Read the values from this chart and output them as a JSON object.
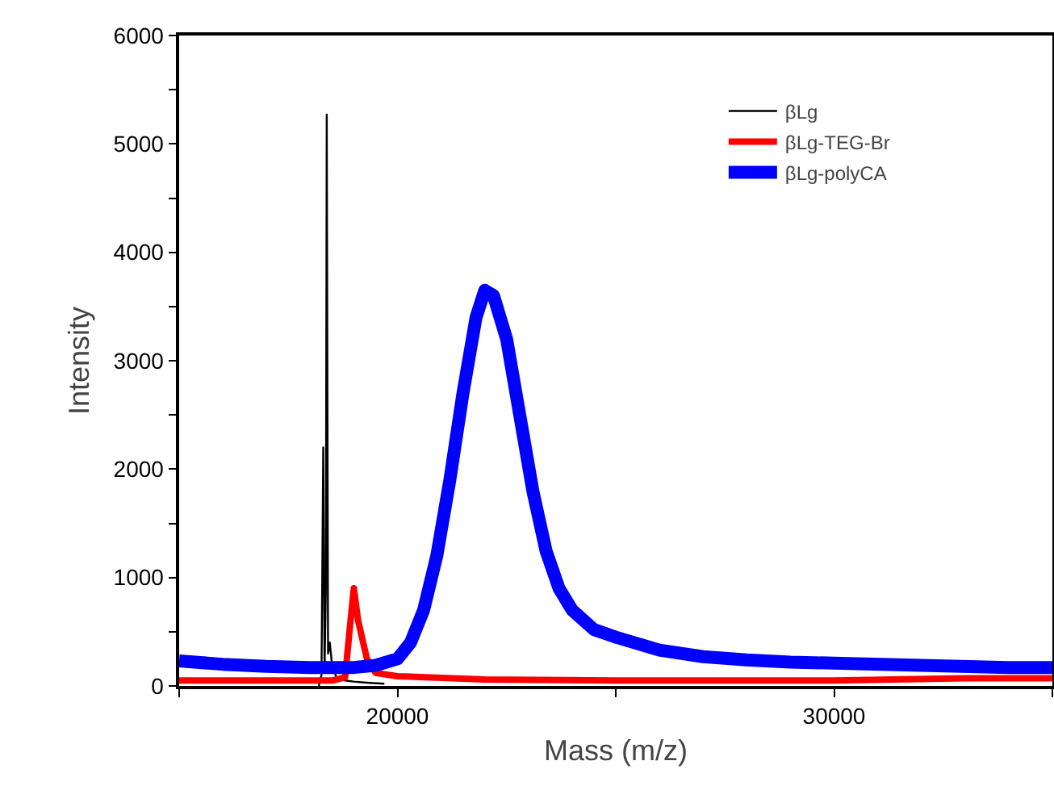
{
  "chart_data": {
    "type": "line",
    "xlabel": "Mass (m/z)",
    "ylabel": "Intensity",
    "xlim": [
      15000,
      35000
    ],
    "xticks": [
      {
        "value": 15000,
        "label": null
      },
      20000,
      {
        "value": 25000,
        "label": null
      },
      30000,
      {
        "value": 35000,
        "label": null
      }
    ],
    "ylim": [
      0,
      6000
    ],
    "yticks": [
      0,
      {
        "value": 500,
        "label": null
      },
      1000,
      {
        "value": 1500,
        "label": null
      },
      2000,
      {
        "value": 2500,
        "label": null
      },
      3000,
      {
        "value": 3500,
        "label": null
      },
      4000,
      {
        "value": 4500,
        "label": null
      },
      5000,
      {
        "value": 5500,
        "label": null
      },
      6000
    ],
    "grid": false,
    "legend": "top right",
    "marker": "none",
    "line_style": "solid",
    "series": [
      {
        "name": "βLg",
        "color": "#000000",
        "x": [
          18200,
          18260,
          18300,
          18330,
          18360,
          18380,
          18410,
          18450,
          18500,
          18600,
          18800,
          19000,
          19300,
          19700
        ],
        "values": [
          0,
          100,
          2200,
          150,
          900,
          5270,
          300,
          400,
          200,
          80,
          50,
          40,
          30,
          20
        ]
      },
      {
        "name": "βLg-TEG-Br",
        "color": "#ff0000",
        "x": [
          15000,
          17000,
          18500,
          18800,
          18900,
          19000,
          19100,
          19300,
          19500,
          20000,
          22000,
          25000,
          30000,
          33000,
          35000
        ],
        "values": [
          50,
          50,
          50,
          80,
          500,
          900,
          600,
          250,
          120,
          90,
          60,
          50,
          50,
          70,
          70
        ]
      },
      {
        "name": "βLg-polyCA",
        "color": "#0000ff",
        "x": [
          15000,
          16000,
          17000,
          18000,
          19000,
          19500,
          20000,
          20300,
          20600,
          20900,
          21200,
          21500,
          21800,
          22000,
          22200,
          22500,
          22800,
          23100,
          23400,
          23700,
          24000,
          24500,
          25000,
          26000,
          27000,
          28000,
          29000,
          30000,
          32000,
          34000,
          35000
        ],
        "values": [
          230,
          200,
          180,
          170,
          170,
          190,
          250,
          400,
          700,
          1200,
          1900,
          2700,
          3400,
          3650,
          3600,
          3200,
          2500,
          1800,
          1250,
          900,
          700,
          520,
          450,
          330,
          270,
          240,
          220,
          210,
          190,
          170,
          170
        ]
      }
    ]
  }
}
